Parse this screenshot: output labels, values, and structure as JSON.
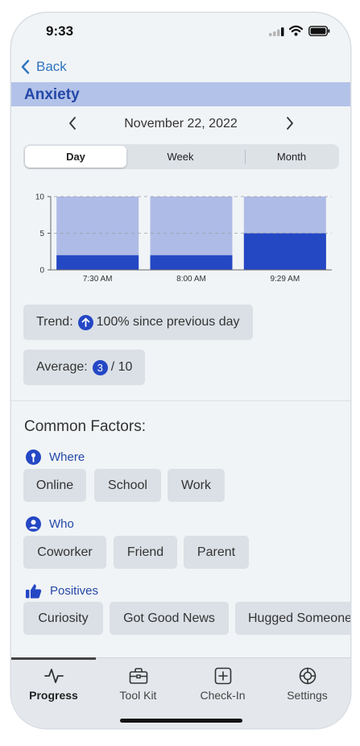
{
  "status": {
    "time": "9:33"
  },
  "nav": {
    "back_label": "Back"
  },
  "title": "Anxiety",
  "date_nav": {
    "date": "November 22, 2022"
  },
  "segments": [
    {
      "label": "Day",
      "active": true
    },
    {
      "label": "Week",
      "active": false
    },
    {
      "label": "Month",
      "active": false
    }
  ],
  "chart_data": {
    "type": "bar",
    "categories": [
      "7:30 AM",
      "8:00 AM",
      "9:29 AM"
    ],
    "values": [
      2,
      2,
      5
    ],
    "ylim": [
      0,
      10
    ],
    "yticks": [
      0,
      5,
      10
    ],
    "grid": true,
    "colors": {
      "value": "#2447c4",
      "track": "#aebbe6"
    }
  },
  "trend": {
    "label": "Trend:",
    "text": "100% since previous day",
    "icon": "arrow-up-icon"
  },
  "average": {
    "label": "Average:",
    "value": "3",
    "suffix": "/ 10"
  },
  "common_factors": {
    "title": "Common Factors:",
    "groups": [
      {
        "label": "Where",
        "icon": "location-pin-icon",
        "items": [
          "Online",
          "School",
          "Work"
        ]
      },
      {
        "label": "Who",
        "icon": "person-icon",
        "items": [
          "Coworker",
          "Friend",
          "Parent"
        ]
      },
      {
        "label": "Positives",
        "icon": "thumbs-up-icon",
        "items": [
          "Curiosity",
          "Got Good News",
          "Hugged Someone"
        ]
      }
    ]
  },
  "tabs": [
    {
      "label": "Progress",
      "icon": "pulse-icon",
      "active": true
    },
    {
      "label": "Tool Kit",
      "icon": "toolbox-icon",
      "active": false
    },
    {
      "label": "Check-In",
      "icon": "plus-square-icon",
      "active": false
    },
    {
      "label": "Settings",
      "icon": "gear-icon",
      "active": false
    }
  ],
  "colors": {
    "accent": "#2447c4",
    "title_band": "#b3c2e8",
    "link": "#2f74c0"
  }
}
